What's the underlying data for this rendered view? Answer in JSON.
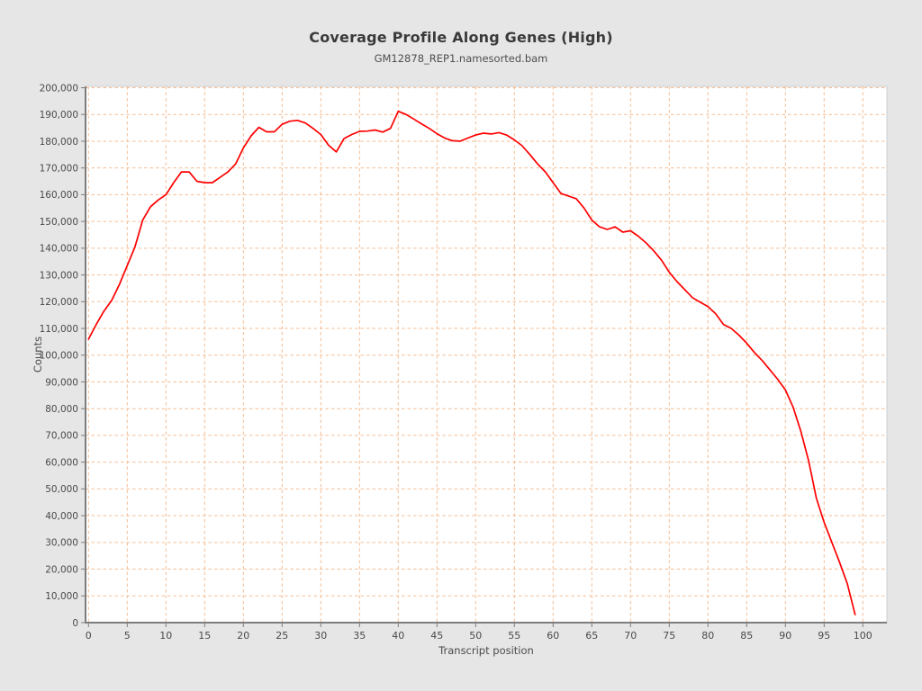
{
  "header": {
    "title": "Coverage Profile Along Genes (High)",
    "subtitle": "GM12878_REP1.namesorted.bam"
  },
  "chart_data": {
    "type": "line",
    "title": "Coverage Profile Along Genes (High)",
    "subtitle": "GM12878_REP1.namesorted.bam",
    "xlabel": "Transcript position",
    "ylabel": "Counts",
    "xlim": [
      0,
      100
    ],
    "ylim": [
      0,
      200000
    ],
    "x_tick_step": 5,
    "y_tick_step": 10000,
    "grid": true,
    "grid_style": "dashed",
    "legend_position": "none",
    "colors": {
      "line": "#fe0000",
      "grid": "#f5bd92",
      "plot_background": "#ffffff",
      "page_background": "#e6e6e6",
      "axis": "#7d7d7d",
      "plot_border": "#cfcfcf",
      "tick_text": "#4a4a4a",
      "title_text": "#3a3a3a",
      "subtitle_text": "#4f4f4f"
    },
    "series": [
      {
        "name": "GM12878_REP1.namesorted.bam",
        "color": "#fe0000",
        "x": [
          0,
          1,
          2,
          3,
          4,
          5,
          6,
          7,
          8,
          9,
          10,
          11,
          12,
          13,
          14,
          15,
          16,
          17,
          18,
          19,
          20,
          21,
          22,
          23,
          24,
          25,
          26,
          27,
          28,
          29,
          30,
          31,
          32,
          33,
          34,
          35,
          36,
          37,
          38,
          39,
          40,
          41,
          42,
          43,
          44,
          45,
          46,
          47,
          48,
          49,
          50,
          51,
          52,
          53,
          54,
          55,
          56,
          57,
          58,
          59,
          60,
          61,
          62,
          63,
          64,
          65,
          66,
          67,
          68,
          69,
          70,
          71,
          72,
          73,
          74,
          75,
          76,
          77,
          78,
          79,
          80,
          81,
          82,
          83,
          84,
          85,
          86,
          87,
          88,
          89,
          90,
          91,
          92,
          93,
          94,
          95,
          96,
          97,
          98,
          99
        ],
        "values": [
          106000,
          111500,
          116500,
          120500,
          126500,
          133500,
          140500,
          150500,
          155500,
          158000,
          160000,
          164500,
          168500,
          168500,
          165000,
          164500,
          164500,
          166500,
          168500,
          171500,
          177500,
          182000,
          185200,
          183500,
          183500,
          186300,
          187500,
          187800,
          186800,
          184800,
          182500,
          178500,
          176000,
          181000,
          182500,
          183700,
          183800,
          184200,
          183400,
          184800,
          191200,
          190000,
          188300,
          186500,
          184800,
          182800,
          181200,
          180200,
          180000,
          181200,
          182300,
          183000,
          182700,
          183200,
          182300,
          180500,
          178300,
          175000,
          171500,
          168500,
          164500,
          160500,
          159500,
          158500,
          155000,
          150500,
          148000,
          147000,
          148000,
          146000,
          146500,
          144500,
          142000,
          139000,
          135500,
          131000,
          127500,
          124500,
          121500,
          119800,
          118200,
          115500,
          111500,
          110000,
          107500,
          104500,
          101000,
          98000,
          94500,
          91000,
          87000,
          80500,
          71500,
          60500,
          46500,
          37500,
          30000,
          22500,
          14500,
          3000
        ]
      }
    ]
  }
}
